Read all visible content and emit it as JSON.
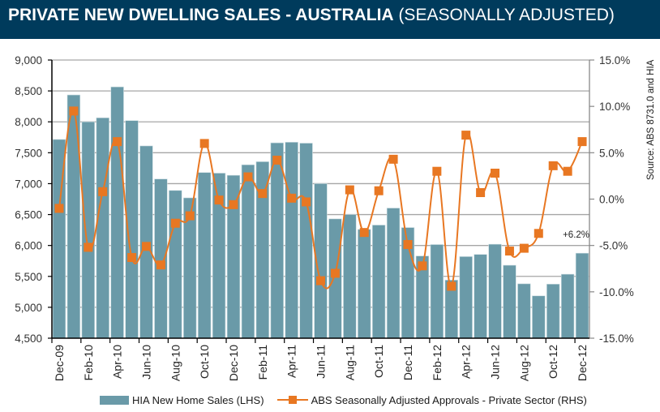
{
  "header": {
    "title_bold": "PRIVATE NEW DWELLING SALES -  AUSTRALIA",
    "title_normal": " (SEASONALLY ADJUSTED)",
    "background": "#003B5C"
  },
  "source": "Source: ABS 8731.0 and HIA",
  "legend": {
    "bar_label": "HIA New Home Sales (LHS)",
    "line_label": "ABS Seasonally Adjusted Approvals - Private Sector (RHS)"
  },
  "colors": {
    "bar": "#6A9AA8",
    "line": "#E87722",
    "grid": "#A6A6A6"
  },
  "chart_data": {
    "type": "bar+line",
    "title": "PRIVATE NEW DWELLING SALES - AUSTRALIA (SEASONALLY ADJUSTED)",
    "xlabel": "",
    "ylabel_left": "",
    "ylabel_right": "",
    "categories": [
      "Dec-09",
      "Jan-10",
      "Feb-10",
      "Mar-10",
      "Apr-10",
      "May-10",
      "Jun-10",
      "Jul-10",
      "Aug-10",
      "Sep-10",
      "Oct-10",
      "Nov-10",
      "Dec-10",
      "Jan-11",
      "Feb-11",
      "Mar-11",
      "Apr-11",
      "May-11",
      "Jun-11",
      "Jul-11",
      "Aug-11",
      "Sep-11",
      "Oct-11",
      "Nov-11",
      "Dec-11",
      "Jan-12",
      "Feb-12",
      "Mar-12",
      "Apr-12",
      "May-12",
      "Jun-12",
      "Jul-12",
      "Aug-12",
      "Sep-12",
      "Oct-12",
      "Nov-12",
      "Dec-12"
    ],
    "x_tick_labels": [
      "Dec-09",
      "Feb-10",
      "Apr-10",
      "Jun-10",
      "Aug-10",
      "Oct-10",
      "Dec-10",
      "Feb-11",
      "Apr-11",
      "Jun-11",
      "Aug-11",
      "Oct-11",
      "Dec-11",
      "Feb-12",
      "Apr-12",
      "Jun-12",
      "Aug-12",
      "Oct-12",
      "Dec-12"
    ],
    "series": [
      {
        "name": "HIA New Home Sales (LHS)",
        "type": "bar",
        "axis": "left",
        "values": [
          7715,
          8435,
          8000,
          8065,
          8565,
          8020,
          7610,
          7075,
          6890,
          6770,
          7180,
          7170,
          7135,
          7305,
          7355,
          7660,
          7670,
          7655,
          7000,
          6430,
          6500,
          6260,
          6330,
          6605,
          6290,
          5830,
          6015,
          5440,
          5820,
          5855,
          6020,
          5680,
          5380,
          5185,
          5375,
          5535,
          5875
        ]
      },
      {
        "name": "ABS Seasonally Adjusted Approvals - Private Sector (RHS)",
        "type": "line",
        "axis": "right",
        "unit": "%",
        "values": [
          -1.0,
          9.5,
          -5.2,
          0.8,
          6.2,
          -6.3,
          -5.1,
          -7.1,
          -2.6,
          -1.8,
          6.0,
          -0.1,
          -0.6,
          2.4,
          0.6,
          4.2,
          0.1,
          -0.3,
          -8.8,
          -8.0,
          1.0,
          -3.6,
          0.9,
          4.3,
          -4.9,
          -7.2,
          3.0,
          -9.4,
          6.9,
          0.7,
          2.8,
          -5.6,
          -5.3,
          -3.7,
          3.6,
          3.0,
          6.2
        ]
      }
    ],
    "ylim_left": [
      4500,
      9000
    ],
    "yticks_left": [
      4500,
      5000,
      5500,
      6000,
      6500,
      7000,
      7500,
      8000,
      8500,
      9000
    ],
    "ytick_labels_left": [
      "4,500",
      "5,000",
      "5,500",
      "6,000",
      "6,500",
      "7,000",
      "7,500",
      "8,000",
      "8,500",
      "9,000"
    ],
    "ylim_right": [
      -15,
      15
    ],
    "yticks_right": [
      -15,
      -10,
      -5,
      0,
      5,
      10,
      15
    ],
    "ytick_labels_right": [
      "-15.0%",
      "-10.0%",
      "-5.0%",
      "0.0%",
      "5.0%",
      "10.0%",
      "15.0%"
    ],
    "annotations": [
      {
        "text": "+6.2%",
        "target": "Dec-12",
        "series": "line"
      }
    ],
    "grid": true,
    "legend_position": "bottom"
  }
}
